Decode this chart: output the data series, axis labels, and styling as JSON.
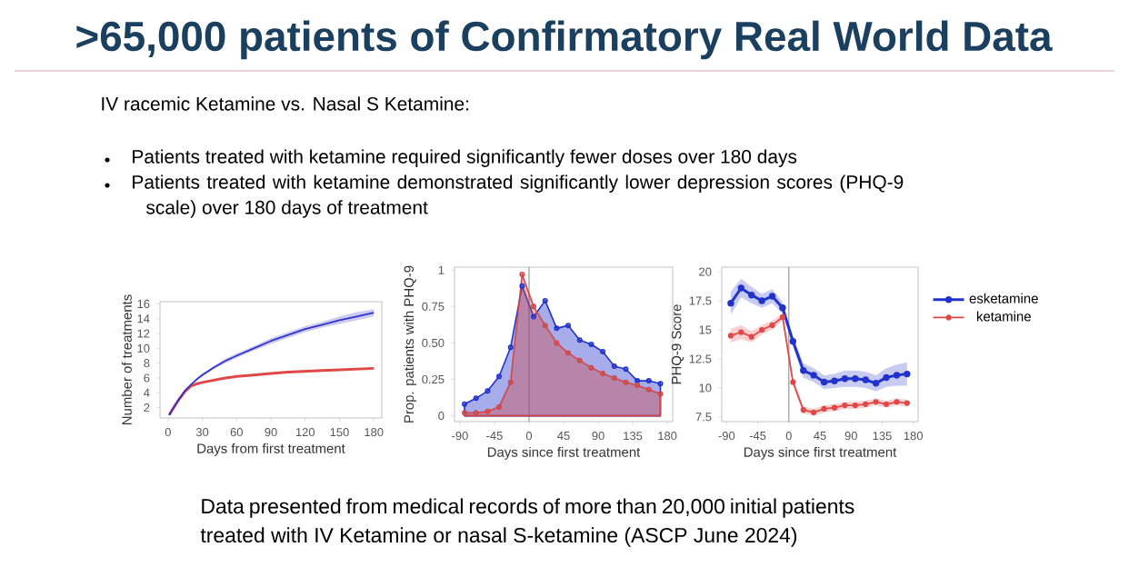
{
  "chart_data": [
    {
      "type": "other",
      "title": ">65,000 patients of Confirmatory Real World Data",
      "annotations": [
        "IV racemic Ketamine vs. Nasal S Ketamine:",
        "Patients treated with ketamine required significantly fewer doses over 180 days",
        "Patients treated with ketamine demonstrated significantly lower depression scores (PHQ-9 scale) over 180 days of treatment",
        "Data presented from medical records of more than 20,000 initial patients treated with IV Ketamine or nasal S-ketamine (ASCP June 2024)"
      ]
    },
    {
      "type": "line",
      "xlabel": "Days from first treatment",
      "ylabel": "Number of treatments",
      "xlim": [
        -7,
        187
      ],
      "ylim": [
        0.6,
        16.3
      ],
      "xticks": [
        0,
        30,
        60,
        90,
        120,
        150,
        180
      ],
      "yticks": [
        2,
        4,
        6,
        8,
        10,
        12,
        14,
        16
      ],
      "x": [
        1,
        5,
        10,
        15,
        20,
        25,
        30,
        40,
        50,
        60,
        75,
        90,
        105,
        120,
        135,
        150,
        165,
        180
      ],
      "series": [
        {
          "color": "#e04848",
          "values": [
            1,
            2.0,
            3.2,
            4.2,
            4.9,
            5.2,
            5.4,
            5.7,
            6.0,
            6.2,
            6.4,
            6.6,
            6.8,
            6.9,
            7.0,
            7.1,
            7.2,
            7.3
          ]
        },
        {
          "color": "#3333cc",
          "values": [
            1,
            2.0,
            3.2,
            4.3,
            5.1,
            5.8,
            6.4,
            7.4,
            8.3,
            9.0,
            10.0,
            11.0,
            11.8,
            12.6,
            13.2,
            13.8,
            14.3,
            14.8
          ],
          "lower": [
            0.9,
            1.9,
            3.1,
            4.2,
            5.0,
            5.6,
            6.2,
            7.2,
            8.0,
            8.7,
            9.7,
            10.6,
            11.4,
            12.2,
            12.8,
            13.3,
            13.8,
            14.3
          ],
          "upper": [
            1.1,
            2.1,
            3.3,
            4.4,
            5.2,
            6.0,
            6.6,
            7.6,
            8.6,
            9.3,
            10.3,
            11.4,
            12.2,
            13.0,
            13.6,
            14.3,
            14.9,
            15.3
          ]
        }
      ]
    },
    {
      "type": "area",
      "marker": "circle",
      "xlabel": "Days since first treatment",
      "ylabel": "Prop. patients with PHQ-9",
      "xlim": [
        -97,
        187
      ],
      "ylim": [
        -0.04,
        1.02
      ],
      "xticks": [
        -90,
        -45,
        0,
        45,
        90,
        135,
        180
      ],
      "yticks": [
        0,
        0.25,
        {
          "value": 0.5,
          "label": "0.50"
        },
        0.75,
        1
      ],
      "ref_lines": [
        {
          "axis": "x",
          "value": 0,
          "color": "#999999"
        }
      ],
      "x": [
        -84,
        -69,
        -54,
        -39,
        -24,
        -9,
        6,
        21,
        36,
        51,
        66,
        81,
        96,
        111,
        126,
        141,
        156,
        171
      ],
      "series": [
        {
          "color": "#2233cc",
          "values": [
            0.08,
            0.12,
            0.17,
            0.27,
            0.47,
            0.89,
            0.68,
            0.79,
            0.6,
            0.62,
            0.52,
            0.49,
            0.44,
            0.34,
            0.32,
            0.24,
            0.24,
            0.22
          ]
        },
        {
          "color": "#d04848",
          "values": [
            0.02,
            0.02,
            0.03,
            0.06,
            0.23,
            0.97,
            0.75,
            0.62,
            0.5,
            0.43,
            0.38,
            0.33,
            0.29,
            0.26,
            0.23,
            0.21,
            0.18,
            0.15
          ]
        }
      ]
    },
    {
      "type": "line",
      "marker": "circle",
      "legend": "right",
      "xlabel": "Days since first treatment",
      "ylabel": "PHQ-9 Score",
      "xlim": [
        -97,
        187
      ],
      "ylim": [
        7.1,
        20.4
      ],
      "xticks": [
        -90,
        -45,
        0,
        45,
        90,
        135,
        180
      ],
      "yticks": [
        7.5,
        10,
        12.5,
        15,
        17.5,
        20
      ],
      "ref_lines": [
        {
          "axis": "x",
          "value": 0,
          "color": "#999999"
        }
      ],
      "x": [
        -84,
        -69,
        -54,
        -39,
        -24,
        -9,
        6,
        21,
        36,
        51,
        66,
        81,
        96,
        111,
        126,
        141,
        156,
        171
      ],
      "series": [
        {
          "name": "esketamine",
          "color": "#2233cc",
          "values": [
            17.3,
            18.6,
            18.0,
            17.5,
            17.9,
            16.9,
            14.0,
            11.5,
            11.1,
            10.5,
            10.6,
            10.8,
            10.8,
            10.7,
            10.4,
            10.9,
            11.1,
            11.2
          ],
          "lower": [
            16.3,
            17.8,
            17.3,
            16.9,
            17.3,
            16.4,
            13.6,
            10.9,
            10.5,
            9.9,
            10.0,
            10.1,
            10.1,
            10.0,
            9.7,
            10.1,
            10.2,
            10.2
          ],
          "upper": [
            18.3,
            19.4,
            18.7,
            18.1,
            18.5,
            17.4,
            14.4,
            12.1,
            11.7,
            11.1,
            11.2,
            11.5,
            11.5,
            11.4,
            11.1,
            11.7,
            12.0,
            12.2
          ]
        },
        {
          "name": "ketamine",
          "color": "#e04848",
          "values": [
            14.5,
            14.8,
            14.4,
            15.0,
            15.4,
            16.1,
            10.5,
            8.1,
            7.9,
            8.2,
            8.3,
            8.5,
            8.5,
            8.6,
            8.8,
            8.6,
            8.8,
            8.7
          ],
          "lower": [
            13.9,
            14.2,
            13.9,
            14.6,
            15.0,
            15.8,
            10.2,
            7.8,
            7.6,
            7.9,
            8.0,
            8.2,
            8.2,
            8.3,
            8.5,
            8.3,
            8.5,
            8.4
          ],
          "upper": [
            15.1,
            15.4,
            14.9,
            15.4,
            15.8,
            16.4,
            10.8,
            8.4,
            8.2,
            8.5,
            8.6,
            8.8,
            8.8,
            8.9,
            9.1,
            8.9,
            9.1,
            9.0
          ]
        }
      ]
    }
  ]
}
